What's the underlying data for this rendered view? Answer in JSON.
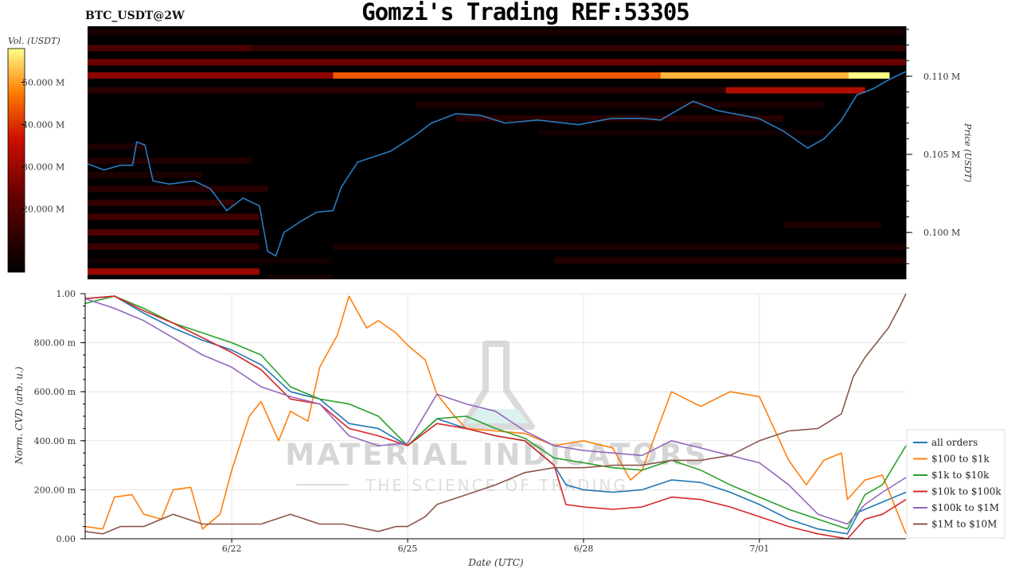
{
  "header": {
    "title": "Gomzi's Trading REF:53305",
    "symbol": "BTC_USDT@2W"
  },
  "watermark": {
    "line1": "MATERIAL INDICATORS",
    "line2": "THE SCIENCE OF TRADING"
  },
  "colors": {
    "price_line": "#2a7bc0",
    "heat_low": "#000000",
    "heat_mid": "#cc1100",
    "heat_high": "#ffee55",
    "grid": "#e6e6e6"
  },
  "chart_data": [
    {
      "type": "heatmap",
      "title": "BTC_USDT@2W",
      "ylabel": "Price (USDT)",
      "colorbar_label": "Vol. (USDT)",
      "colorbar_ticks": [
        "20.000 M",
        "30.000 M",
        "40.000 M",
        "50.000 M"
      ],
      "colorbar_values": [
        20,
        30,
        40,
        50
      ],
      "colorbar_range": [
        5,
        58
      ],
      "price_ticks": [
        "0.100 M",
        "0.105 M",
        "0.110 M"
      ],
      "price_tick_values": [
        100000,
        105000,
        110000
      ],
      "ylim": [
        97000,
        113200
      ],
      "x_range": [
        "6/20",
        "7/04"
      ],
      "liquidity_bands": [
        {
          "price": 112800,
          "vol": 9,
          "from": 0.0,
          "to": 1.0
        },
        {
          "price": 111800,
          "vol": 18,
          "from": 0.0,
          "to": 0.2
        },
        {
          "price": 111800,
          "vol": 14,
          "from": 0.2,
          "to": 1.0
        },
        {
          "price": 110900,
          "vol": 24,
          "from": 0.0,
          "to": 1.0
        },
        {
          "price": 110050,
          "vol": 28,
          "from": 0.0,
          "to": 0.3
        },
        {
          "price": 110050,
          "vol": 44,
          "from": 0.3,
          "to": 0.7
        },
        {
          "price": 110050,
          "vol": 52,
          "from": 0.7,
          "to": 0.93
        },
        {
          "price": 110050,
          "vol": 58,
          "from": 0.93,
          "to": 0.98
        },
        {
          "price": 109100,
          "vol": 12,
          "from": 0.0,
          "to": 0.78
        },
        {
          "price": 109100,
          "vol": 33,
          "from": 0.78,
          "to": 0.95
        },
        {
          "price": 108200,
          "vol": 10,
          "from": 0.4,
          "to": 0.9
        },
        {
          "price": 107300,
          "vol": 12,
          "from": 0.45,
          "to": 0.85
        },
        {
          "price": 106400,
          "vol": 8,
          "from": 0.55,
          "to": 0.9
        },
        {
          "price": 105500,
          "vol": 10,
          "from": 0.0,
          "to": 0.07
        },
        {
          "price": 104600,
          "vol": 11,
          "from": 0.0,
          "to": 0.2
        },
        {
          "price": 103700,
          "vol": 10,
          "from": 0.0,
          "to": 0.14
        },
        {
          "price": 102800,
          "vol": 12,
          "from": 0.0,
          "to": 0.22
        },
        {
          "price": 101900,
          "vol": 14,
          "from": 0.0,
          "to": 0.18
        },
        {
          "price": 101000,
          "vol": 16,
          "from": 0.0,
          "to": 0.21
        },
        {
          "price": 100000,
          "vol": 19,
          "from": 0.0,
          "to": 0.21
        },
        {
          "price": 100500,
          "vol": 10,
          "from": 0.85,
          "to": 0.97
        },
        {
          "price": 99100,
          "vol": 15,
          "from": 0.0,
          "to": 0.21
        },
        {
          "price": 99100,
          "vol": 10,
          "from": 0.3,
          "to": 1.0
        },
        {
          "price": 98200,
          "vol": 8,
          "from": 0.0,
          "to": 0.3
        },
        {
          "price": 98200,
          "vol": 11,
          "from": 0.57,
          "to": 1.0
        },
        {
          "price": 97500,
          "vol": 30,
          "from": 0.0,
          "to": 0.21
        },
        {
          "price": 97100,
          "vol": 9,
          "from": 0.22,
          "to": 0.3
        },
        {
          "price": 96500,
          "vol": 7,
          "from": 0.0,
          "to": 0.6
        }
      ],
      "price_series": [
        {
          "t": 0.0,
          "p": 104400
        },
        {
          "t": 0.02,
          "p": 104000
        },
        {
          "t": 0.04,
          "p": 104300
        },
        {
          "t": 0.055,
          "p": 104300
        },
        {
          "t": 0.06,
          "p": 105800
        },
        {
          "t": 0.07,
          "p": 105600
        },
        {
          "t": 0.08,
          "p": 103300
        },
        {
          "t": 0.1,
          "p": 103100
        },
        {
          "t": 0.13,
          "p": 103300
        },
        {
          "t": 0.15,
          "p": 102800
        },
        {
          "t": 0.17,
          "p": 101400
        },
        {
          "t": 0.19,
          "p": 102200
        },
        {
          "t": 0.21,
          "p": 101700
        },
        {
          "t": 0.22,
          "p": 98800
        },
        {
          "t": 0.23,
          "p": 98500
        },
        {
          "t": 0.24,
          "p": 100000
        },
        {
          "t": 0.26,
          "p": 100700
        },
        {
          "t": 0.28,
          "p": 101300
        },
        {
          "t": 0.3,
          "p": 101400
        },
        {
          "t": 0.31,
          "p": 102900
        },
        {
          "t": 0.33,
          "p": 104500
        },
        {
          "t": 0.37,
          "p": 105200
        },
        {
          "t": 0.4,
          "p": 106200
        },
        {
          "t": 0.42,
          "p": 107000
        },
        {
          "t": 0.45,
          "p": 107600
        },
        {
          "t": 0.48,
          "p": 107500
        },
        {
          "t": 0.51,
          "p": 107000
        },
        {
          "t": 0.55,
          "p": 107200
        },
        {
          "t": 0.6,
          "p": 106900
        },
        {
          "t": 0.64,
          "p": 107300
        },
        {
          "t": 0.68,
          "p": 107300
        },
        {
          "t": 0.7,
          "p": 107200
        },
        {
          "t": 0.74,
          "p": 108400
        },
        {
          "t": 0.77,
          "p": 107800
        },
        {
          "t": 0.82,
          "p": 107300
        },
        {
          "t": 0.85,
          "p": 106500
        },
        {
          "t": 0.88,
          "p": 105400
        },
        {
          "t": 0.9,
          "p": 106000
        },
        {
          "t": 0.92,
          "p": 107100
        },
        {
          "t": 0.94,
          "p": 108800
        },
        {
          "t": 0.96,
          "p": 109200
        },
        {
          "t": 0.98,
          "p": 109800
        },
        {
          "t": 1.0,
          "p": 110300
        }
      ]
    },
    {
      "type": "line",
      "xlabel": "Date (UTC)",
      "ylabel": "Norm. CVD (arb. u.)",
      "ylim": [
        0,
        1
      ],
      "xlim": [
        0,
        14
      ],
      "x_ticks": [
        "6/22",
        "6/25",
        "6/28",
        "7/01"
      ],
      "x_tick_values": [
        2.5,
        5.5,
        8.5,
        11.5
      ],
      "y_ticks": [
        "0.00",
        "200.00 m",
        "400.00 m",
        "600.00 m",
        "800.00 m",
        "1.00"
      ],
      "y_tick_values": [
        0,
        0.2,
        0.4,
        0.6,
        0.8,
        1.0
      ],
      "grid": true,
      "legend_position": "bottom-right",
      "series": [
        {
          "name": "all orders",
          "color": "#1f77b4",
          "x": [
            0,
            0.5,
            1,
            1.5,
            2,
            2.5,
            3,
            3.5,
            4,
            4.5,
            5,
            5.5,
            6,
            6.5,
            7,
            7.5,
            8,
            8.2,
            8.5,
            9,
            9.5,
            10,
            10.5,
            11,
            11.5,
            12,
            12.5,
            13,
            13.2,
            13.5,
            14
          ],
          "y": [
            0.98,
            0.99,
            0.92,
            0.86,
            0.81,
            0.77,
            0.71,
            0.6,
            0.57,
            0.47,
            0.45,
            0.38,
            0.49,
            0.45,
            0.42,
            0.4,
            0.3,
            0.22,
            0.2,
            0.19,
            0.2,
            0.24,
            0.23,
            0.19,
            0.14,
            0.08,
            0.04,
            0.02,
            0.11,
            0.14,
            0.19
          ]
        },
        {
          "name": "$100 to $1k",
          "color": "#ff7f0e",
          "x": [
            0,
            0.3,
            0.5,
            0.8,
            1,
            1.3,
            1.5,
            1.8,
            2,
            2.3,
            2.5,
            2.8,
            3,
            3.3,
            3.5,
            3.8,
            4,
            4.3,
            4.5,
            4.8,
            5,
            5.3,
            5.5,
            5.8,
            6,
            6.3,
            6.5,
            7,
            7.5,
            8,
            8.5,
            9,
            9.3,
            9.5,
            10,
            10.5,
            11,
            11.5,
            12,
            12.3,
            12.6,
            12.9,
            13,
            13.3,
            13.6,
            14
          ],
          "y": [
            0.05,
            0.04,
            0.17,
            0.18,
            0.1,
            0.08,
            0.2,
            0.21,
            0.04,
            0.1,
            0.28,
            0.5,
            0.56,
            0.4,
            0.52,
            0.48,
            0.7,
            0.83,
            0.99,
            0.86,
            0.89,
            0.84,
            0.79,
            0.73,
            0.59,
            0.5,
            0.45,
            0.44,
            0.43,
            0.38,
            0.4,
            0.37,
            0.24,
            0.28,
            0.6,
            0.54,
            0.6,
            0.58,
            0.32,
            0.22,
            0.32,
            0.35,
            0.16,
            0.24,
            0.26,
            0.02
          ]
        },
        {
          "name": "$1k to $10k",
          "color": "#2ca02c",
          "x": [
            0,
            0.5,
            1,
            1.5,
            2,
            2.5,
            3,
            3.5,
            4,
            4.5,
            5,
            5.5,
            6,
            6.5,
            7,
            7.5,
            8,
            8.5,
            9,
            9.5,
            10,
            10.5,
            11,
            11.5,
            12,
            12.5,
            13,
            13.3,
            13.6,
            14
          ],
          "y": [
            0.96,
            0.99,
            0.94,
            0.88,
            0.84,
            0.8,
            0.75,
            0.62,
            0.57,
            0.55,
            0.5,
            0.38,
            0.49,
            0.5,
            0.45,
            0.41,
            0.33,
            0.31,
            0.29,
            0.28,
            0.32,
            0.28,
            0.22,
            0.17,
            0.12,
            0.08,
            0.04,
            0.18,
            0.22,
            0.38
          ]
        },
        {
          "name": "$10k to $100k",
          "color": "#d62728",
          "x": [
            0,
            0.5,
            1,
            1.5,
            2,
            2.5,
            3,
            3.5,
            4,
            4.5,
            5,
            5.5,
            6,
            6.5,
            7,
            7.5,
            8,
            8.2,
            8.5,
            9,
            9.5,
            10,
            10.5,
            11,
            11.5,
            12,
            12.5,
            13,
            13.3,
            13.6,
            14
          ],
          "y": [
            0.98,
            0.99,
            0.93,
            0.88,
            0.82,
            0.76,
            0.69,
            0.57,
            0.55,
            0.45,
            0.42,
            0.38,
            0.47,
            0.45,
            0.42,
            0.4,
            0.3,
            0.14,
            0.13,
            0.12,
            0.13,
            0.17,
            0.16,
            0.13,
            0.09,
            0.05,
            0.02,
            0.0,
            0.08,
            0.1,
            0.16
          ]
        },
        {
          "name": "$100k to $1M",
          "color": "#9467bd",
          "x": [
            0,
            0.5,
            1,
            1.5,
            2,
            2.5,
            3,
            3.5,
            4,
            4.5,
            5,
            5.5,
            6,
            6.5,
            7,
            7.5,
            8,
            8.5,
            9,
            9.5,
            10,
            10.5,
            11,
            11.5,
            12,
            12.5,
            13,
            13.3,
            13.6,
            14
          ],
          "y": [
            0.98,
            0.94,
            0.89,
            0.82,
            0.75,
            0.7,
            0.62,
            0.58,
            0.55,
            0.42,
            0.38,
            0.39,
            0.59,
            0.55,
            0.52,
            0.44,
            0.38,
            0.36,
            0.35,
            0.34,
            0.4,
            0.37,
            0.34,
            0.31,
            0.22,
            0.1,
            0.06,
            0.14,
            0.19,
            0.25
          ]
        },
        {
          "name": "$1M to $10M",
          "color": "#8c564b",
          "x": [
            0,
            0.3,
            0.6,
            1,
            1.5,
            2,
            2.5,
            3,
            3.5,
            4,
            4.4,
            4.6,
            5,
            5.3,
            5.5,
            5.8,
            6,
            6.5,
            7,
            7.5,
            8,
            8.5,
            9,
            9.5,
            10,
            10.5,
            11,
            11.5,
            12,
            12.5,
            12.9,
            13.1,
            13.3,
            13.5,
            13.7,
            13.9,
            14
          ],
          "y": [
            0.03,
            0.02,
            0.05,
            0.05,
            0.1,
            0.06,
            0.06,
            0.06,
            0.1,
            0.06,
            0.06,
            0.05,
            0.03,
            0.05,
            0.05,
            0.09,
            0.14,
            0.18,
            0.22,
            0.27,
            0.29,
            0.29,
            0.3,
            0.3,
            0.32,
            0.32,
            0.34,
            0.4,
            0.44,
            0.45,
            0.51,
            0.66,
            0.74,
            0.8,
            0.86,
            0.95,
            1.0
          ]
        }
      ]
    }
  ]
}
